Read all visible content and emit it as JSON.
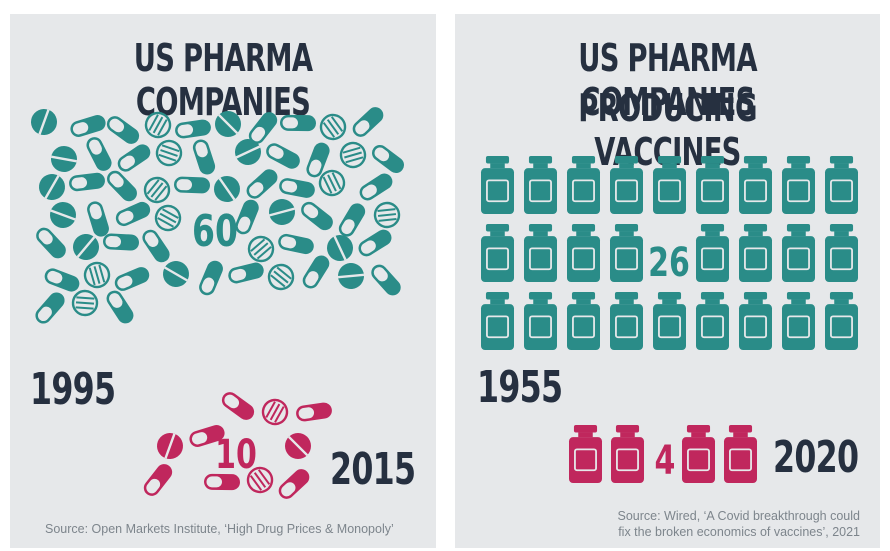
{
  "colors": {
    "teal": "#2a8c88",
    "magenta": "#c0275d",
    "dark": "#263040",
    "panel_bg": "#e6e8ea",
    "source_text": "#7d858c"
  },
  "icons": {
    "left_panel": "pill-icon",
    "right_panel": "vaccine-vial-icon"
  },
  "chart_data": [
    {
      "type": "pictogram",
      "title": "US PHARMA COMPANIES",
      "series": [
        {
          "name": "1995",
          "value": 60,
          "color": "teal"
        },
        {
          "name": "2015",
          "value": 10,
          "color": "magenta"
        }
      ],
      "source": "Source: Open Markets Institute, ‘High Drug Prices & Monopoly’"
    },
    {
      "type": "pictogram",
      "title_lines": [
        "US PHARMA COMPANIES",
        "PRODUCING VACCINES"
      ],
      "series": [
        {
          "name": "1955",
          "value": 26,
          "color": "teal"
        },
        {
          "name": "2020",
          "value": 4,
          "color": "magenta"
        }
      ],
      "source_lines": [
        "Source: Wired, ‘A Covid breakthrough could",
        "fix the broken economics of vaccines’, 2021"
      ]
    }
  ]
}
